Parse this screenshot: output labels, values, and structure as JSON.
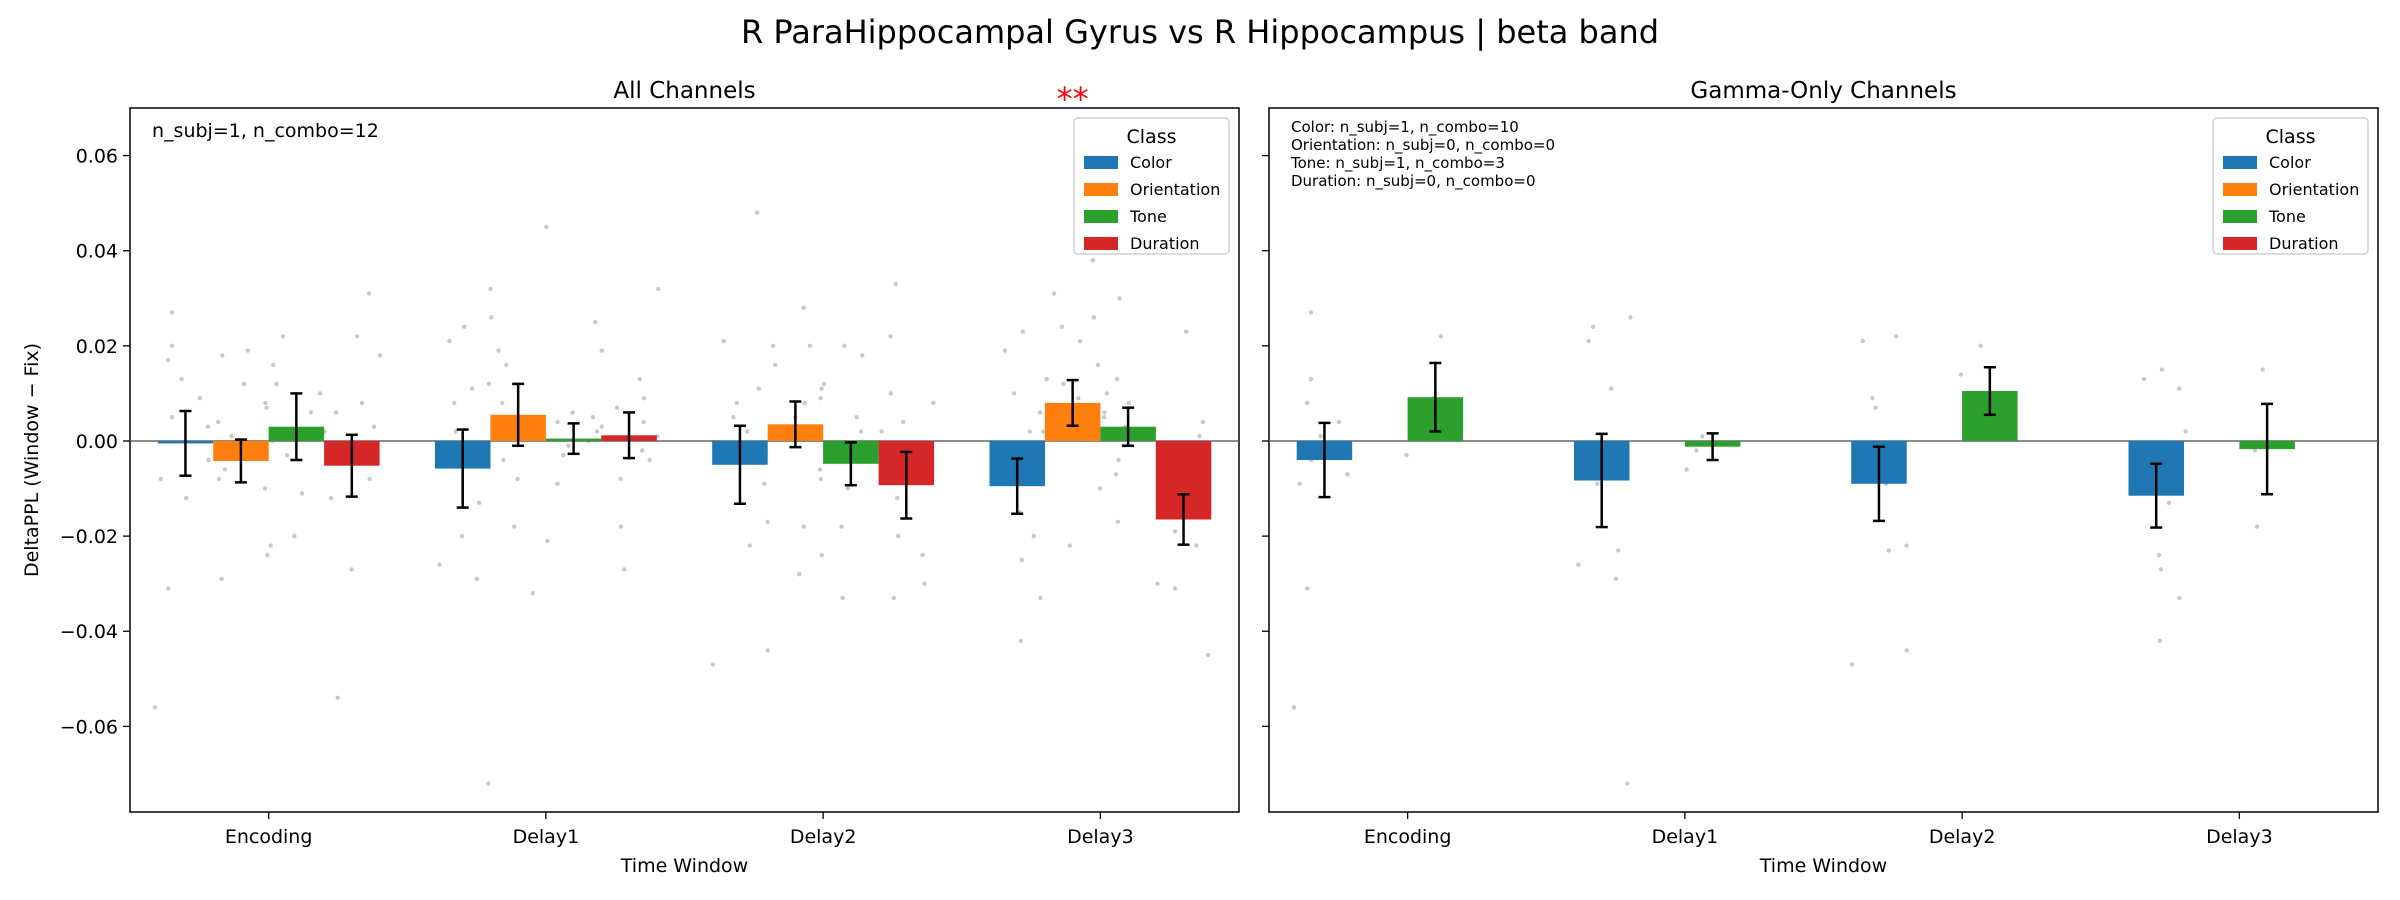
{
  "suptitle": "R ParaHippocampal Gyrus vs R Hippocampus  |  beta band",
  "colors": {
    "Color": "#1f77b4",
    "Orientation": "#ff7f0e",
    "Tone": "#2ca02c",
    "Duration": "#d62728",
    "significance": "#ff0000",
    "points": "#bbbbbb"
  },
  "chart_data": [
    {
      "type": "bar",
      "title": "All Channels",
      "xlabel": "Time Window",
      "ylabel": "DeltaPPL (Window − Fix)",
      "ylim": [
        -0.078,
        0.07
      ],
      "yticks": [
        -0.06,
        -0.04,
        -0.02,
        0.0,
        0.02,
        0.04,
        0.06
      ],
      "ytick_labels": [
        "−0.06",
        "−0.04",
        "−0.02",
        "0.00",
        "0.02",
        "0.04",
        "0.06"
      ],
      "categories": [
        "Encoding",
        "Delay1",
        "Delay2",
        "Delay3"
      ],
      "annotation": [
        "n_subj=1, n_combo=12"
      ],
      "legend_title": "Class",
      "legend_position": "top-right",
      "series": [
        {
          "name": "Color",
          "values": [
            -0.0005,
            -0.0058,
            -0.005,
            -0.0095
          ],
          "errors": [
            0.0068,
            0.0082,
            0.0082,
            0.0058
          ]
        },
        {
          "name": "Orientation",
          "values": [
            -0.0042,
            0.0055,
            0.0035,
            0.008
          ],
          "errors": [
            0.0045,
            0.0065,
            0.0048,
            0.0048
          ]
        },
        {
          "name": "Tone",
          "values": [
            0.003,
            0.0005,
            -0.0048,
            0.003
          ],
          "errors": [
            0.007,
            0.0032,
            0.0045,
            0.004
          ]
        },
        {
          "name": "Duration",
          "values": [
            -0.0052,
            0.0012,
            -0.0093,
            -0.0165
          ],
          "errors": [
            0.0065,
            0.0048,
            0.007,
            0.0053
          ]
        }
      ],
      "significance": [
        {
          "category": "Delay3",
          "series": "Orientation",
          "label": "**"
        }
      ],
      "points": [
        [
          [
            -0.056,
            -0.031,
            -0.008,
            0.005,
            0.013,
            0.017,
            0.02,
            0.027,
            -0.004,
            0.009,
            -0.012,
            0.003
          ],
          [
            -0.029,
            -0.022,
            -0.01,
            -0.006,
            0.001,
            0.012,
            0.018,
            0.019,
            -0.008,
            0.004,
            0.008,
            -0.003
          ],
          [
            -0.024,
            -0.02,
            -0.011,
            0.0,
            0.006,
            0.012,
            0.016,
            0.022,
            -0.003,
            0.007,
            0.002,
            0.01
          ],
          [
            -0.054,
            -0.027,
            -0.012,
            -0.004,
            0.008,
            0.018,
            0.022,
            0.031,
            -0.008,
            0.003,
            0.006,
            -0.002
          ]
        ],
        [
          [
            -0.072,
            -0.029,
            -0.026,
            -0.013,
            0.002,
            0.011,
            0.021,
            0.026,
            -0.005,
            0.008,
            -0.02,
            0.024
          ],
          [
            -0.032,
            -0.018,
            -0.008,
            0.008,
            0.012,
            0.019,
            0.032,
            0.045,
            0.003,
            -0.004,
            0.016,
            0.001
          ],
          [
            -0.021,
            -0.009,
            -0.003,
            0.001,
            0.003,
            0.005,
            0.004,
            0.002,
            -0.001,
            0.006,
            0.0,
            0.025
          ],
          [
            -0.027,
            -0.018,
            -0.008,
            -0.002,
            0.004,
            0.009,
            0.019,
            0.032,
            -0.004,
            0.001,
            0.013,
            0.007
          ]
        ],
        [
          [
            -0.047,
            -0.044,
            -0.022,
            -0.017,
            0.002,
            0.008,
            0.021,
            0.048,
            -0.009,
            0.005,
            -0.003,
            0.011
          ],
          [
            -0.028,
            -0.018,
            -0.006,
            0.008,
            0.016,
            0.02,
            0.028,
            0.02,
            0.003,
            -0.002,
            0.011,
            0.005
          ],
          [
            -0.033,
            -0.024,
            -0.018,
            -0.008,
            0.002,
            0.009,
            0.018,
            0.02,
            -0.004,
            0.005,
            -0.01,
            0.012
          ],
          [
            -0.033,
            -0.03,
            -0.02,
            -0.012,
            0.002,
            0.008,
            0.022,
            0.033,
            -0.006,
            0.01,
            -0.024,
            0.004
          ]
        ],
        [
          [
            -0.042,
            -0.033,
            -0.025,
            -0.015,
            0.002,
            0.013,
            0.019,
            0.023,
            -0.009,
            0.006,
            -0.02,
            0.01
          ],
          [
            -0.022,
            -0.01,
            0.005,
            0.012,
            0.021,
            0.026,
            0.031,
            0.038,
            0.016,
            0.009,
            0.002,
            0.024
          ],
          [
            -0.017,
            -0.007,
            -0.001,
            0.003,
            0.006,
            0.01,
            0.013,
            0.03,
            0.001,
            0.005,
            -0.004,
            0.008
          ],
          [
            -0.045,
            -0.031,
            -0.03,
            -0.019,
            -0.013,
            -0.006,
            0.004,
            0.023,
            -0.01,
            -0.003,
            -0.022,
            0.001
          ]
        ]
      ]
    },
    {
      "type": "bar",
      "title": "Gamma-Only Channels",
      "xlabel": "Time Window",
      "ylabel": "",
      "ylim": [
        -0.078,
        0.07
      ],
      "yticks": [
        -0.06,
        -0.04,
        -0.02,
        0.0,
        0.02,
        0.04,
        0.06
      ],
      "ytick_labels": [
        "",
        "",
        "",
        "",
        "",
        "",
        ""
      ],
      "categories": [
        "Encoding",
        "Delay1",
        "Delay2",
        "Delay3"
      ],
      "annotation": [
        "Color: n_subj=1, n_combo=10",
        "Orientation: n_subj=0, n_combo=0",
        "Tone: n_subj=1, n_combo=3",
        "Duration: n_subj=0, n_combo=0"
      ],
      "legend_title": "Class",
      "legend_position": "top-right",
      "series": [
        {
          "name": "Color",
          "values": [
            -0.004,
            -0.0083,
            -0.009,
            -0.0115
          ],
          "errors": [
            0.0078,
            0.0098,
            0.0078,
            0.0067
          ]
        },
        {
          "name": "Orientation",
          "values": [
            null,
            null,
            null,
            null
          ],
          "errors": [
            null,
            null,
            null,
            null
          ]
        },
        {
          "name": "Tone",
          "values": [
            0.0092,
            -0.0012,
            0.0105,
            -0.0017
          ],
          "errors": [
            0.0072,
            0.0028,
            0.005,
            0.0095
          ]
        },
        {
          "name": "Duration",
          "values": [
            null,
            null,
            null,
            null
          ],
          "errors": [
            null,
            null,
            null,
            null
          ]
        }
      ],
      "significance": [],
      "points": [
        [
          [
            -0.056,
            -0.031,
            -0.009,
            -0.004,
            0.001,
            0.008,
            0.013,
            0.027,
            -0.007,
            0.004
          ],
          [],
          [
            -0.003,
            0.009,
            0.022
          ],
          []
        ],
        [
          [
            -0.072,
            -0.029,
            -0.026,
            -0.023,
            -0.005,
            0.011,
            0.021,
            0.026,
            -0.009,
            0.024
          ],
          [],
          [
            -0.006,
            -0.002,
            0.001
          ],
          []
        ],
        [
          [
            -0.047,
            -0.044,
            -0.023,
            -0.022,
            -0.009,
            0.007,
            0.021,
            0.022,
            -0.004,
            0.009
          ],
          [],
          [
            0.008,
            0.014,
            0.02
          ],
          []
        ],
        [
          [
            -0.042,
            -0.033,
            -0.027,
            -0.024,
            -0.013,
            0.002,
            0.013,
            0.015,
            -0.008,
            0.011
          ],
          [],
          [
            -0.018,
            -0.002,
            0.015
          ],
          []
        ]
      ]
    }
  ]
}
